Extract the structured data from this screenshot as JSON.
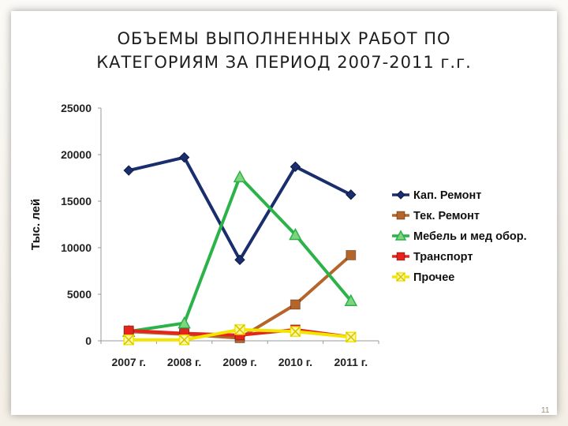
{
  "title_lines": [
    "ОБЪЕМЫ  ВЫПОЛНЕННЫХ  РАБОТ ПО",
    "КАТЕГОРИЯМ  ЗА ПЕРИОД  2007-2011   г.г."
  ],
  "slide_number": "11",
  "chart_data": {
    "type": "line",
    "ylabel": "Тыс. лей",
    "xlabel": "",
    "categories": [
      "2007 г.",
      "2008 г.",
      "2009 г.",
      "2010 г.",
      "2011 г."
    ],
    "ylim": [
      0,
      25000
    ],
    "yticks": [
      0,
      5000,
      10000,
      15000,
      20000,
      25000
    ],
    "grid": false,
    "legend_position": "right",
    "series": [
      {
        "name": "Кап. Ремонт",
        "color": "#1a2e6e",
        "marker": "diamond",
        "values": [
          18300,
          19700,
          8700,
          18700,
          15700
        ]
      },
      {
        "name": "Тек. Ремонт",
        "color": "#b5652a",
        "marker": "square",
        "values": [
          1000,
          700,
          300,
          3900,
          9200
        ]
      },
      {
        "name": "Мебель и мед обор.",
        "color": "#2bb34a",
        "marker": "triangle",
        "values": [
          1000,
          1900,
          17600,
          11400,
          4300
        ]
      },
      {
        "name": "Транспорт",
        "color": "#e8231b",
        "marker": "square",
        "values": [
          1100,
          800,
          600,
          1200,
          400
        ]
      },
      {
        "name": "Прочее",
        "color": "#f2e600",
        "marker": "x",
        "values": [
          100,
          100,
          1200,
          1000,
          400
        ]
      }
    ]
  }
}
